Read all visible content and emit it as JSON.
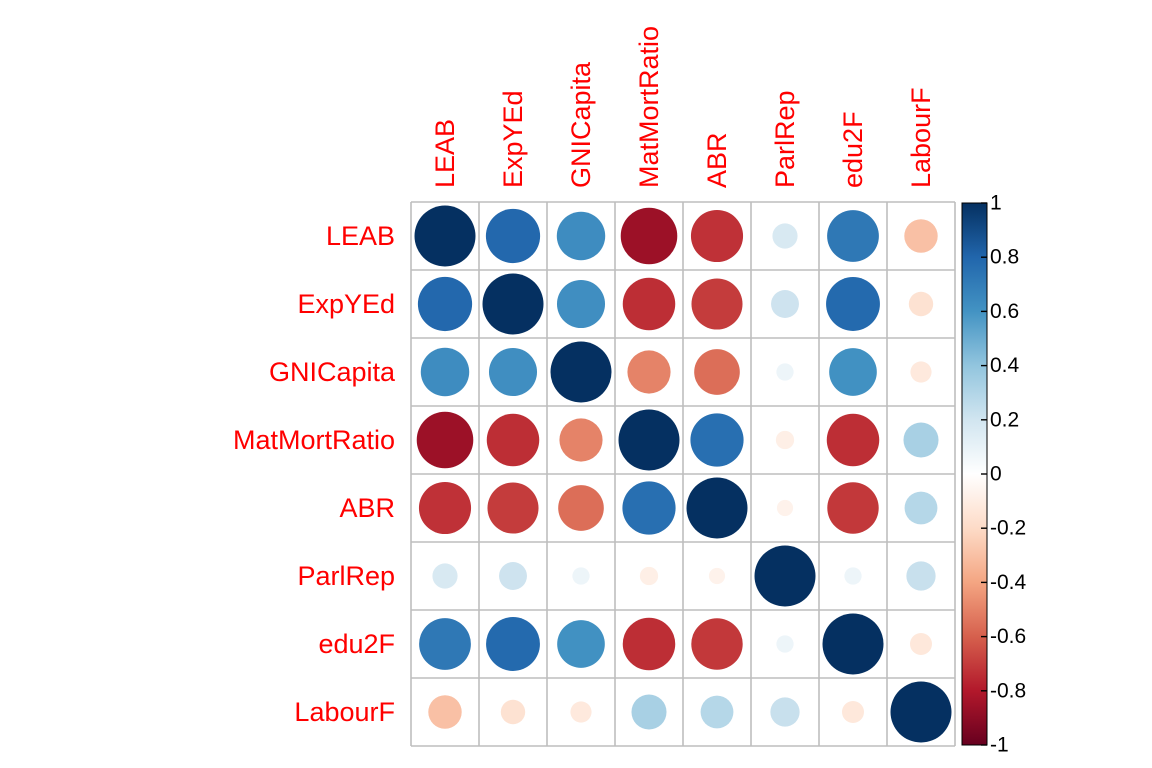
{
  "chart_data": {
    "type": "heatmap",
    "style": "corrplot-circle",
    "variables": [
      "LEAB",
      "ExpYEd",
      "GNICapita",
      "MatMortRatio",
      "ABR",
      "ParlRep",
      "edu2F",
      "LabourF"
    ],
    "matrix": [
      [
        1.0,
        0.79,
        0.63,
        -0.86,
        -0.73,
        0.17,
        0.72,
        -0.3
      ],
      [
        0.79,
        1.0,
        0.62,
        -0.74,
        -0.7,
        0.21,
        0.78,
        -0.16
      ],
      [
        0.63,
        0.62,
        1.0,
        -0.5,
        -0.56,
        0.08,
        0.61,
        -0.12
      ],
      [
        -0.86,
        -0.74,
        -0.5,
        1.0,
        0.76,
        -0.09,
        -0.74,
        0.33
      ],
      [
        -0.73,
        -0.7,
        -0.56,
        0.76,
        1.0,
        -0.07,
        -0.71,
        0.29
      ],
      [
        0.17,
        0.21,
        0.08,
        -0.09,
        -0.07,
        1.0,
        0.08,
        0.23
      ],
      [
        0.72,
        0.78,
        0.61,
        -0.74,
        -0.71,
        0.08,
        1.0,
        -0.13
      ],
      [
        -0.3,
        -0.16,
        -0.12,
        0.33,
        0.29,
        0.23,
        -0.13,
        1.0
      ]
    ],
    "color_scale": {
      "min": -1,
      "max": 1,
      "ticks": [
        "1",
        "0.8",
        "0.6",
        "0.4",
        "0.2",
        "0",
        "-0.2",
        "-0.4",
        "-0.6",
        "-0.8",
        "-1"
      ],
      "stops": [
        "#67001F",
        "#B2182B",
        "#D6604D",
        "#F4A582",
        "#FDDBC7",
        "#FFFFFF",
        "#D1E5F0",
        "#92C5DE",
        "#4393C3",
        "#2166AC",
        "#053061"
      ]
    },
    "label_color": "#FF0000",
    "grid_color": "#BEBEBE",
    "legend_position": "right"
  }
}
